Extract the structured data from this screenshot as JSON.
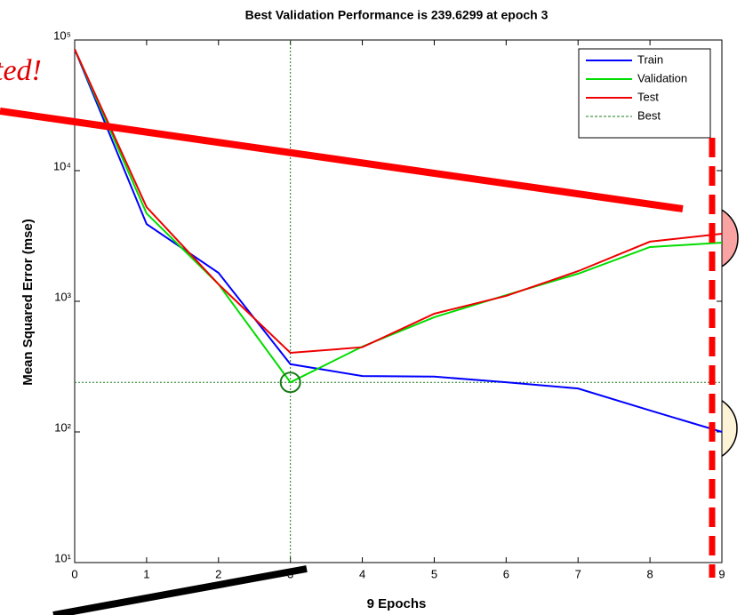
{
  "chart_data": {
    "type": "line",
    "title": "Best Validation Performance is 239.6299 at epoch 3",
    "x_label": "9 Epochs",
    "y_label": "Mean Squared Error  (mse)",
    "x": [
      0,
      1,
      2,
      3,
      4,
      5,
      6,
      7,
      8,
      9
    ],
    "xlim": [
      0,
      9
    ],
    "xticks": [
      0,
      1,
      2,
      3,
      4,
      5,
      6,
      7,
      8,
      9
    ],
    "ylim": [
      10,
      100000
    ],
    "yticks": [
      {
        "value": 10,
        "label": "10¹"
      },
      {
        "value": 100,
        "label": "10²"
      },
      {
        "value": 1000,
        "label": "10³"
      },
      {
        "value": 10000,
        "label": "10⁴"
      },
      {
        "value": 100000,
        "label": "10⁵"
      }
    ],
    "log_scale": true,
    "legend": "top-right",
    "series": [
      {
        "name": "Train",
        "color": "#0000ff",
        "values": [
          85000,
          3900,
          1650,
          330,
          268,
          265,
          240,
          215,
          146,
          100
        ]
      },
      {
        "name": "Validation",
        "color": "#00dd00",
        "values": [
          85000,
          4700,
          1350,
          239.6299,
          450,
          755,
          1115,
          1625,
          2600,
          2810
        ]
      },
      {
        "name": "Test",
        "color": "#ee0000",
        "values": [
          85000,
          5260,
          1350,
          403,
          445,
          803,
          1100,
          1700,
          2860,
          3290
        ]
      }
    ],
    "best": {
      "name": "Best",
      "color": "#1a7a1a",
      "epoch": 3,
      "value": 239.6299
    }
  },
  "annotation": "ted!"
}
